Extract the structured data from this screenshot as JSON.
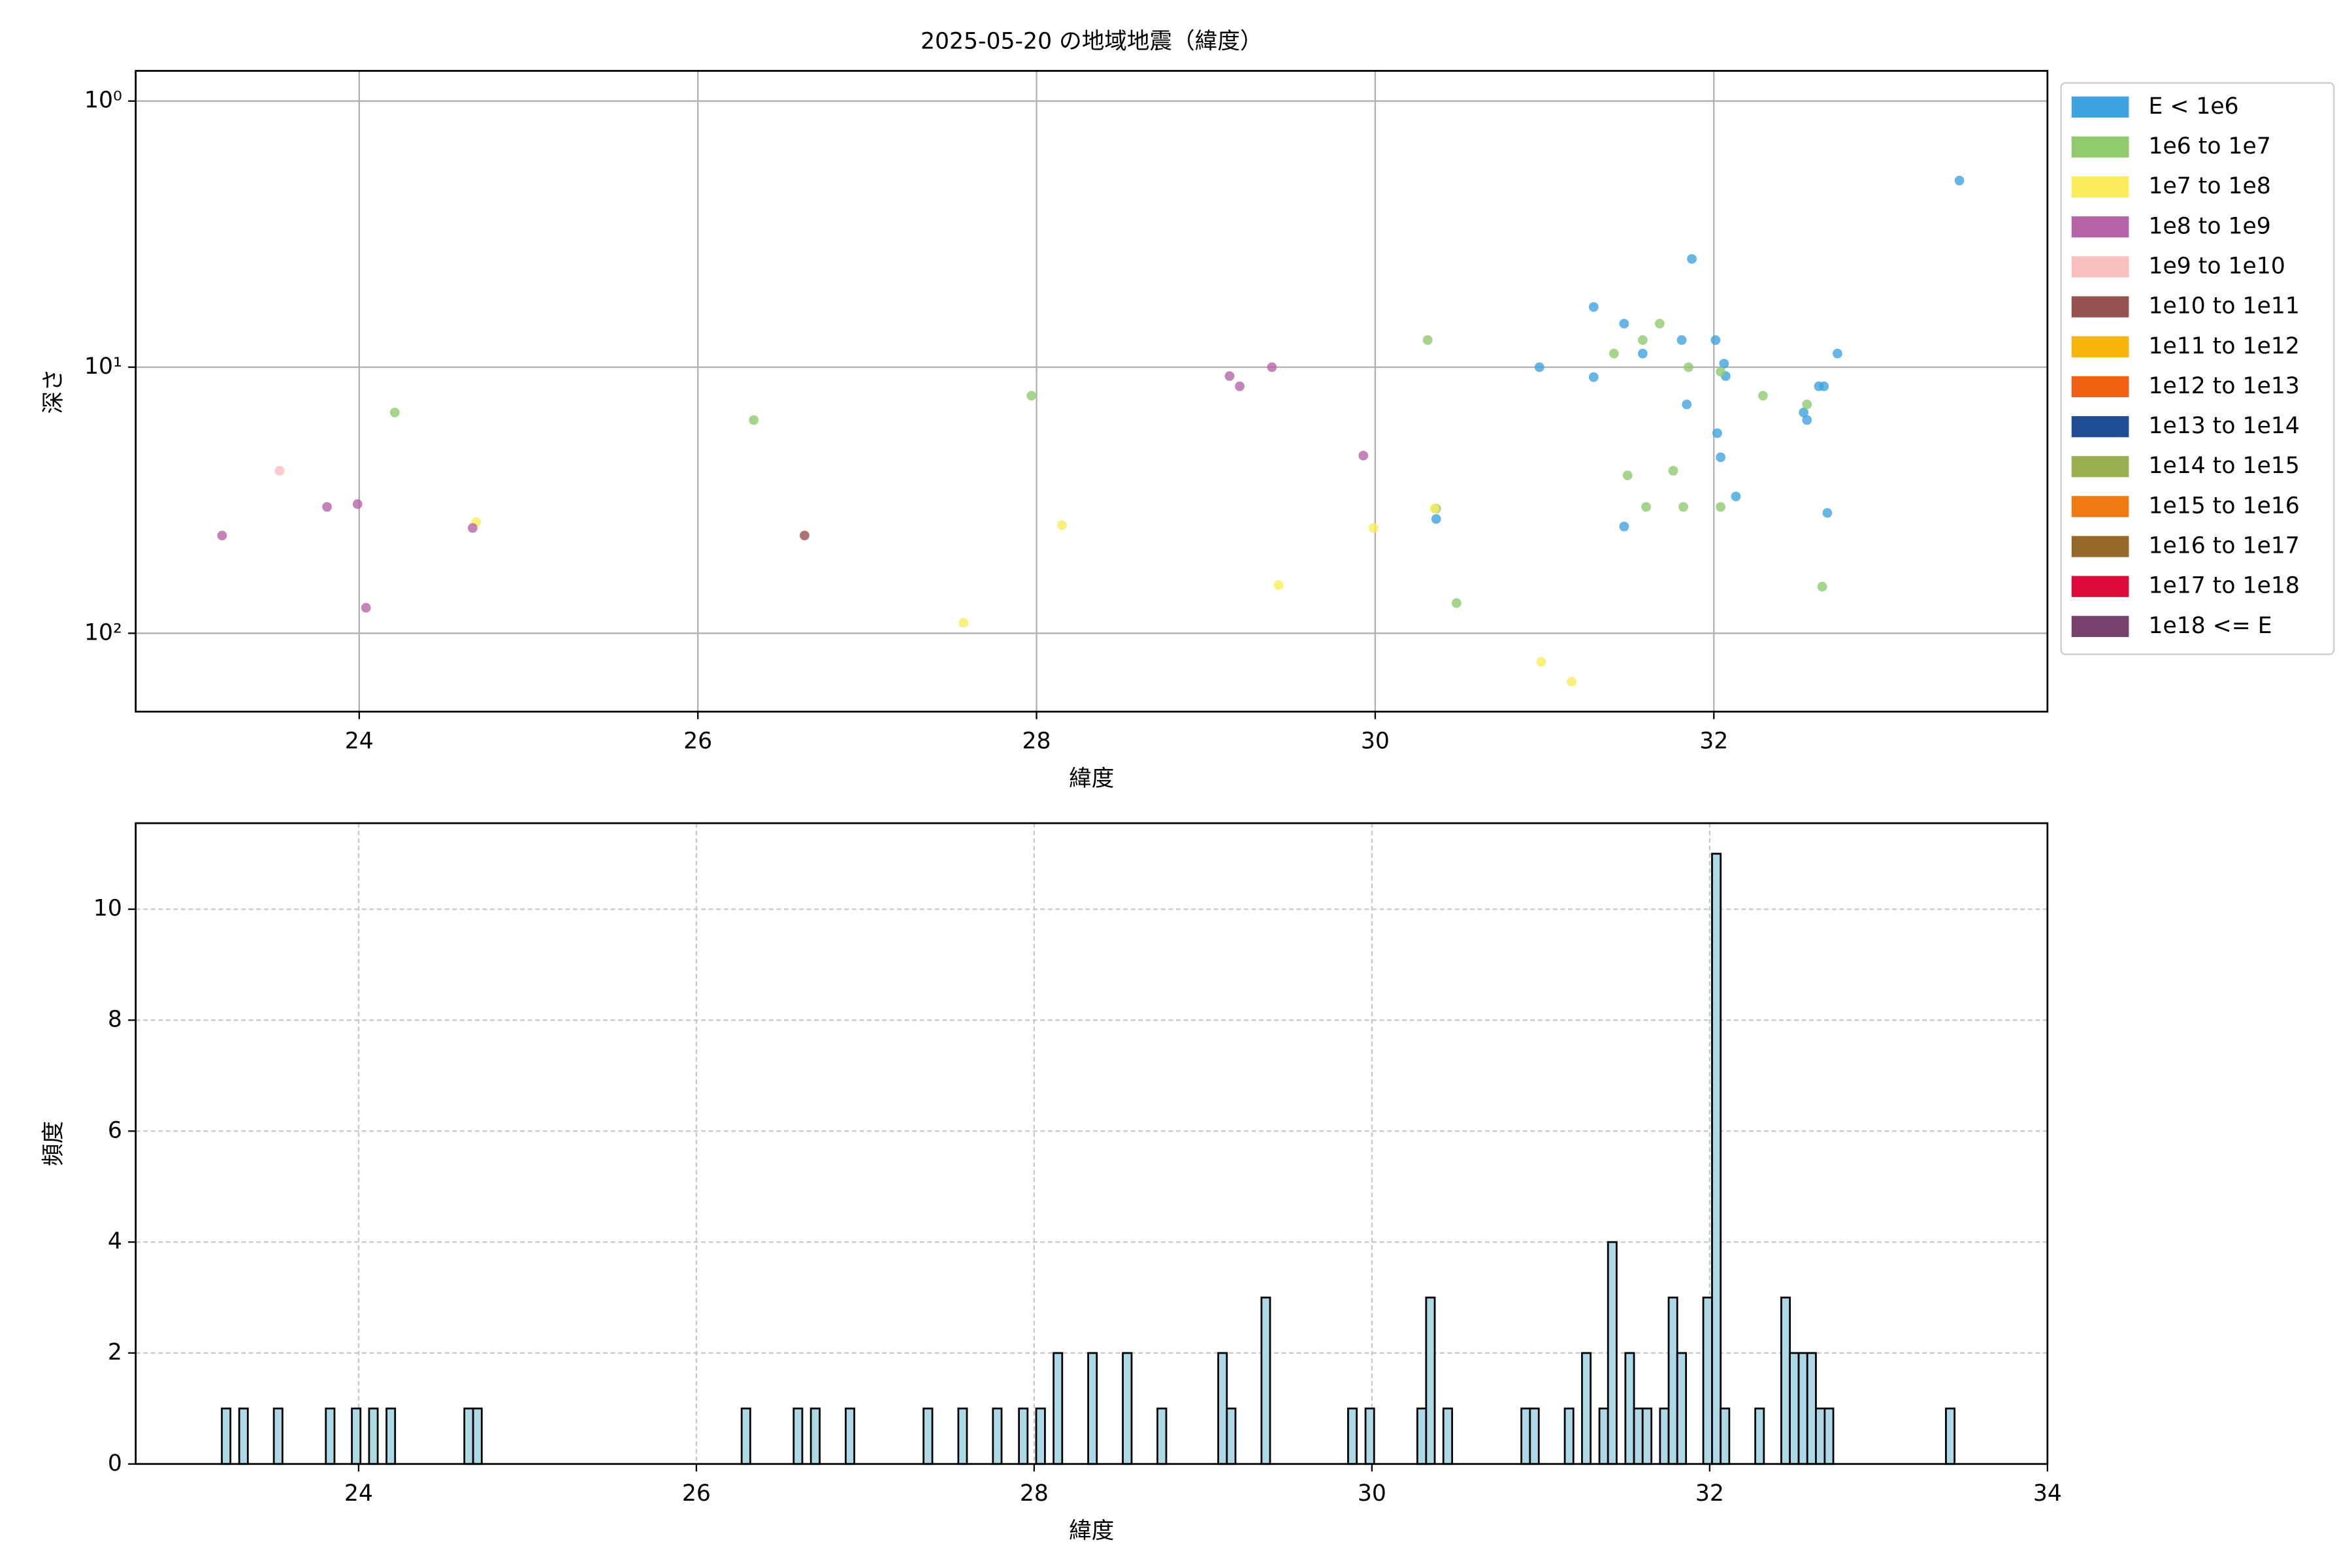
{
  "chart_data": [
    {
      "type": "scatter",
      "title": "2025-05-20 の地域地震（緯度）",
      "xlabel": "緯度",
      "ylabel": "深さ",
      "xlim": [
        22.68,
        33.97
      ],
      "xticks": [
        24,
        26,
        28,
        30,
        32
      ],
      "yscale": "log",
      "ylim": [
        197,
        0.77
      ],
      "yticks": [
        {
          "value": 1,
          "label": "10⁰"
        },
        {
          "value": 10,
          "label": "10¹"
        },
        {
          "value": 100,
          "label": "10²"
        }
      ],
      "grid": true,
      "legend": "outside-right",
      "series": [
        {
          "name": "E < 1e6",
          "color": "#3ea3de",
          "x": [
            33.45,
            31.87,
            31.29,
            31.47,
            31.81,
            32.01,
            31.58,
            32.73,
            30.97,
            32.06,
            32.07,
            31.29,
            32.65,
            32.62,
            32.53,
            31.84,
            32.55,
            32.02,
            32.04,
            32.13,
            31.47,
            32.67,
            30.36
          ],
          "values": [
            1.99,
            3.92,
            5.94,
            6.86,
            7.91,
            7.91,
            8.89,
            8.89,
            10,
            9.7,
            10.8,
            10.9,
            11.8,
            11.8,
            14.8,
            13.8,
            15.8,
            17.7,
            21.8,
            30.6,
            39.7,
            35.3,
            37.2
          ]
        },
        {
          "name": "1e6 to 1e7",
          "color": "#8fcb6d",
          "x": [
            24.21,
            26.33,
            27.97,
            30.31,
            31.68,
            31.41,
            31.58,
            31.85,
            32.04,
            32.29,
            32.55,
            31.49,
            31.76,
            31.6,
            31.82,
            32.04,
            30.36,
            30.48,
            32.64
          ],
          "values": [
            14.8,
            15.8,
            12.8,
            7.91,
            6.86,
            8.89,
            7.91,
            10,
            10.4,
            12.8,
            13.8,
            25.5,
            24.5,
            33.5,
            33.5,
            33.5,
            34,
            77,
            66.8
          ]
        },
        {
          "name": "1e7 to 1e8",
          "color": "#fbec5d",
          "x": [
            24.69,
            28.15,
            29.99,
            30.35,
            29.43,
            27.57,
            30.98,
            31.16
          ],
          "values": [
            38.2,
            39.2,
            40.2,
            34,
            65.9,
            91.3,
            128,
            152
          ]
        },
        {
          "name": "1e8 to 1e9",
          "color": "#b565a7",
          "x": [
            23.19,
            23.81,
            23.99,
            24.67,
            24.04,
            29.14,
            29.2,
            29.39,
            29.93
          ],
          "values": [
            42.9,
            33.5,
            32.7,
            40.2,
            80.2,
            10.8,
            11.8,
            10,
            21.5
          ]
        },
        {
          "name": "1e9 to 1e10",
          "color": "#f7bfbe",
          "x": [
            23.53
          ],
          "values": [
            24.5
          ]
        },
        {
          "name": "1e10 to 1e11",
          "color": "#955251",
          "x": [
            26.63
          ],
          "values": [
            42.9
          ]
        },
        {
          "name": "1e11 to 1e12",
          "color": "#f7b50c",
          "x": [],
          "values": []
        },
        {
          "name": "1e12 to 1e13",
          "color": "#ee6010",
          "x": [],
          "values": []
        },
        {
          "name": "1e13 to 1e14",
          "color": "#1f4e96",
          "x": [],
          "values": []
        },
        {
          "name": "1e14 to 1e15",
          "color": "#9aaf50",
          "x": [],
          "values": []
        },
        {
          "name": "1e15 to 1e16",
          "color": "#ef7a12",
          "x": [],
          "values": []
        },
        {
          "name": "1e16 to 1e17",
          "color": "#95692a",
          "x": [],
          "values": []
        },
        {
          "name": "1e17 to 1e18",
          "color": "#de0a3c",
          "x": [],
          "values": []
        },
        {
          "name": "1e18 <= E",
          "color": "#76426d",
          "x": [],
          "values": []
        }
      ]
    },
    {
      "type": "histogram",
      "xlabel": "緯度",
      "ylabel": "頻度",
      "xlim": [
        22.68,
        34
      ],
      "xticks": [
        24,
        26,
        28,
        30,
        32,
        34
      ],
      "ylim": [
        0,
        11.55
      ],
      "yticks": [
        0,
        2,
        4,
        6,
        8,
        10
      ],
      "grid": "dashed",
      "color": "#add8e6",
      "edgecolor": "#000000",
      "bins": [
        23.19,
        23.241,
        23.293,
        23.344,
        23.498,
        23.549,
        23.806,
        23.857,
        23.96,
        24.011,
        24.062,
        24.113,
        24.165,
        24.216,
        24.626,
        24.678,
        24.729,
        26.268,
        26.319,
        26.576,
        26.627,
        26.678,
        26.73,
        26.884,
        26.935,
        27.345,
        27.397,
        27.551,
        27.602,
        27.756,
        27.807,
        27.91,
        27.961,
        28.012,
        28.064,
        28.115,
        28.166,
        28.32,
        28.371,
        28.525,
        28.577,
        28.73,
        28.782,
        29.09,
        29.141,
        29.192,
        29.346,
        29.397,
        29.859,
        29.91,
        29.962,
        30.013,
        30.269,
        30.321,
        30.372,
        30.423,
        30.475,
        30.885,
        30.936,
        30.988,
        31.142,
        31.193,
        31.244,
        31.295,
        31.347,
        31.398,
        31.449,
        31.501,
        31.552,
        31.603,
        31.655,
        31.706,
        31.757,
        31.808,
        31.86,
        31.962,
        32.014,
        32.065,
        32.116,
        32.27,
        32.321,
        32.424,
        32.475,
        32.527,
        32.578,
        32.629,
        32.681,
        32.732,
        33.399,
        33.45
      ],
      "values": [
        1,
        0,
        1,
        0,
        1,
        0,
        1,
        0,
        1,
        0,
        1,
        0,
        1,
        0,
        1,
        1,
        0,
        1,
        0,
        1,
        0,
        1,
        0,
        1,
        0,
        1,
        0,
        1,
        0,
        1,
        0,
        1,
        0,
        1,
        0,
        2,
        0,
        2,
        0,
        2,
        0,
        1,
        0,
        2,
        1,
        0,
        3,
        0,
        1,
        0,
        1,
        0,
        1,
        3,
        0,
        1,
        0,
        1,
        1,
        0,
        1,
        0,
        2,
        0,
        1,
        4,
        0,
        2,
        1,
        1,
        0,
        1,
        3,
        2,
        0,
        3,
        11,
        1,
        0,
        1,
        0,
        3,
        2,
        2,
        2,
        1,
        1,
        0,
        1
      ]
    }
  ]
}
